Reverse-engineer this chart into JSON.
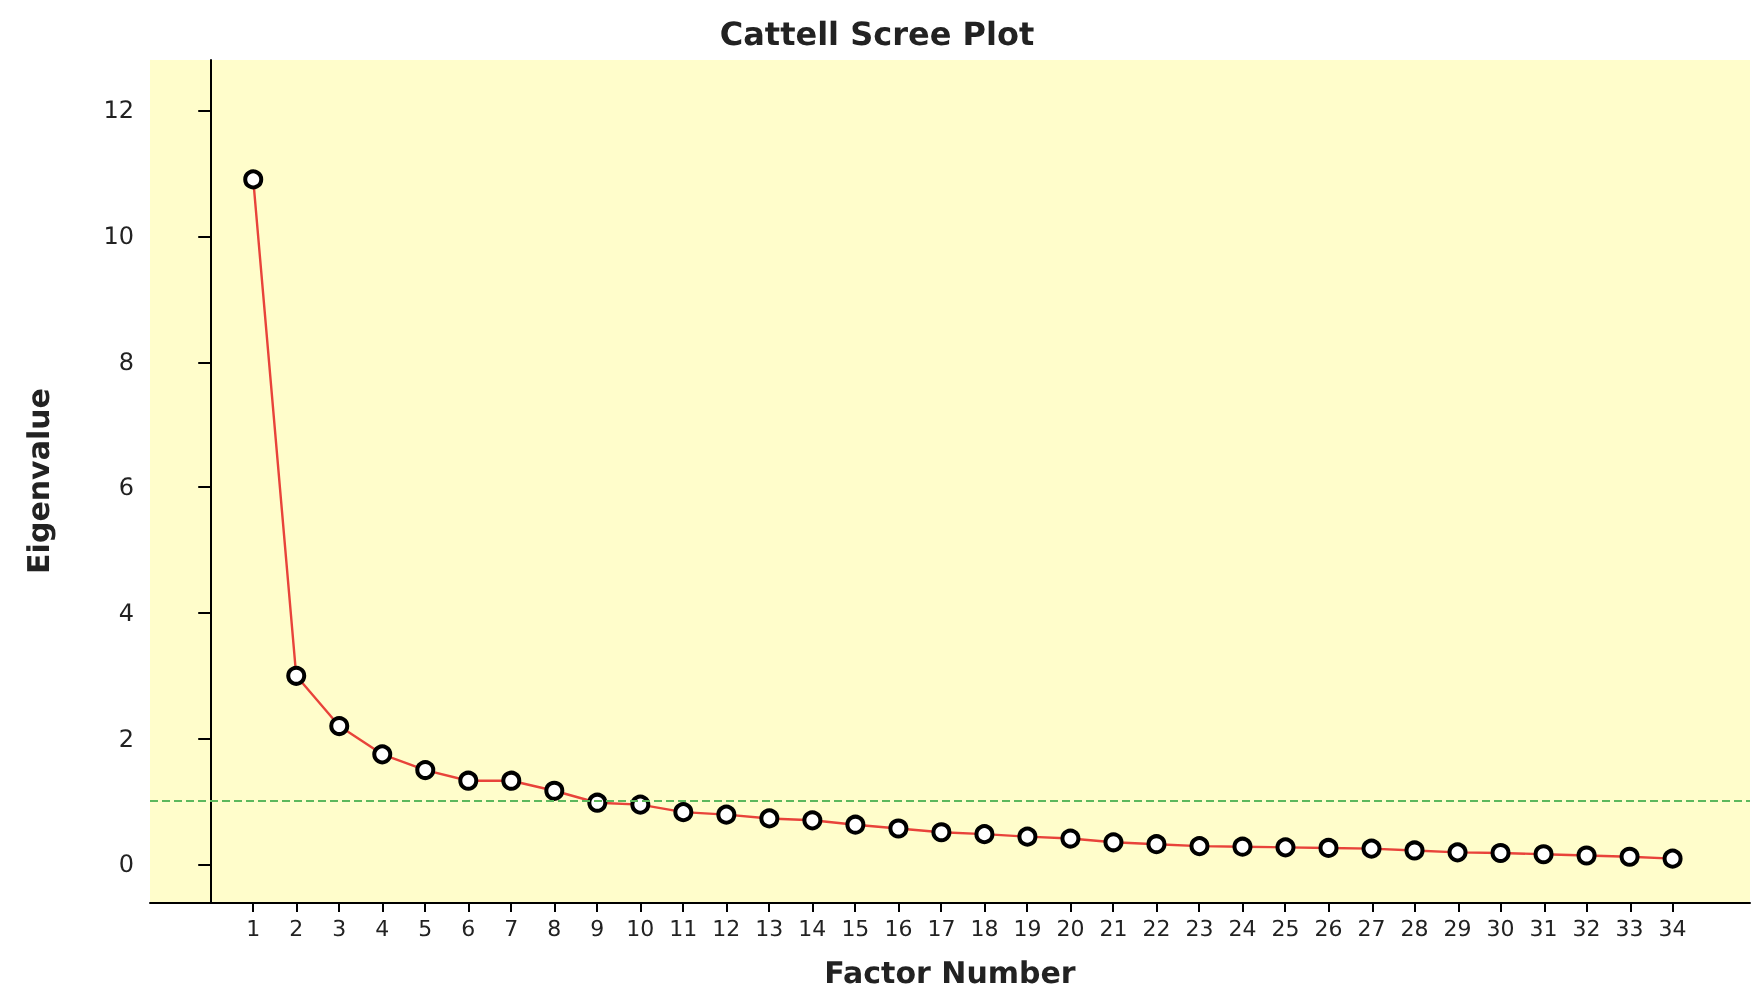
{
  "chart_data": {
    "type": "line",
    "title": "Cattell Scree Plot",
    "xlabel": "Factor Number",
    "ylabel": "Eigenvalue",
    "x": [
      1,
      2,
      3,
      4,
      5,
      6,
      7,
      8,
      9,
      10,
      11,
      12,
      13,
      14,
      15,
      16,
      17,
      18,
      19,
      20,
      21,
      22,
      23,
      24,
      25,
      26,
      27,
      28,
      29,
      30,
      31,
      32,
      33,
      34
    ],
    "series": [
      {
        "color": "#e8433a",
        "values": [
          10.9,
          3.0,
          2.2,
          1.75,
          1.5,
          1.33,
          1.33,
          1.17,
          0.98,
          0.95,
          0.83,
          0.79,
          0.73,
          0.7,
          0.63,
          0.57,
          0.51,
          0.48,
          0.44,
          0.41,
          0.35,
          0.32,
          0.29,
          0.28,
          0.27,
          0.26,
          0.25,
          0.22,
          0.19,
          0.18,
          0.16,
          0.14,
          0.12,
          0.09
        ]
      }
    ],
    "xlim": [
      -1.4,
      35.8
    ],
    "xticks": [
      1,
      2,
      3,
      4,
      5,
      6,
      7,
      8,
      9,
      10,
      11,
      12,
      13,
      14,
      15,
      16,
      17,
      18,
      19,
      20,
      21,
      22,
      23,
      24,
      25,
      26,
      27,
      28,
      29,
      30,
      31,
      32,
      33,
      34
    ],
    "ylim": [
      -0.6,
      12.8
    ],
    "yticks": [
      0,
      2,
      4,
      6,
      8,
      10,
      12
    ],
    "ref_lines": [
      {
        "axis": "y",
        "value": 1,
        "color": "#5cb85c",
        "line_style": "dashed"
      }
    ],
    "grid": false,
    "marker": "circle",
    "line_style": "solid"
  }
}
